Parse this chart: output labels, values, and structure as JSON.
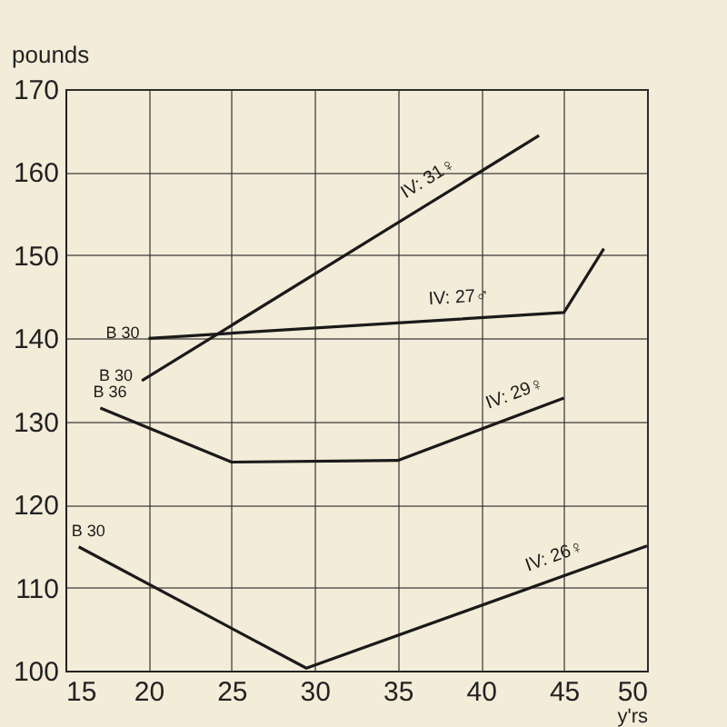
{
  "chart_data": {
    "type": "line",
    "xlabel": "y'rs",
    "ylabel": "pounds",
    "xlim": [
      15,
      50
    ],
    "ylim": [
      100,
      170
    ],
    "xticks": [
      15,
      20,
      25,
      30,
      35,
      40,
      45,
      50
    ],
    "yticks": [
      100,
      110,
      120,
      130,
      140,
      150,
      160,
      170
    ],
    "grid": true,
    "marker": "none",
    "line_style": "solid",
    "series": [
      {
        "name": "IV: 31♀",
        "color": "#1a1a1a",
        "x": [
          19.6,
          43.5
        ],
        "values": [
          134.9,
          164.4
        ]
      },
      {
        "name": "IV: 27♂",
        "color": "#1a1a1a",
        "x": [
          20,
          45,
          47.4
        ],
        "values": [
          140,
          143.1,
          150.8
        ]
      },
      {
        "name": "IV: 29♀",
        "color": "#1a1a1a",
        "x": [
          17.1,
          25,
          35,
          45
        ],
        "values": [
          131.6,
          125.1,
          125.3,
          132.8
        ]
      },
      {
        "name": "IV: 26♀",
        "color": "#1a1a1a",
        "x": [
          15.8,
          29.5,
          50
        ],
        "values": [
          114.9,
          100.3,
          115
        ]
      }
    ],
    "annotations": [
      {
        "text": "B 30",
        "x": 20,
        "y": 140
      },
      {
        "text": "B 30",
        "x": 19.6,
        "y": 134.9
      },
      {
        "text": "B 36",
        "x": 17.1,
        "y": 131.6
      },
      {
        "text": "B 30",
        "x": 15.8,
        "y": 114.9
      }
    ]
  }
}
